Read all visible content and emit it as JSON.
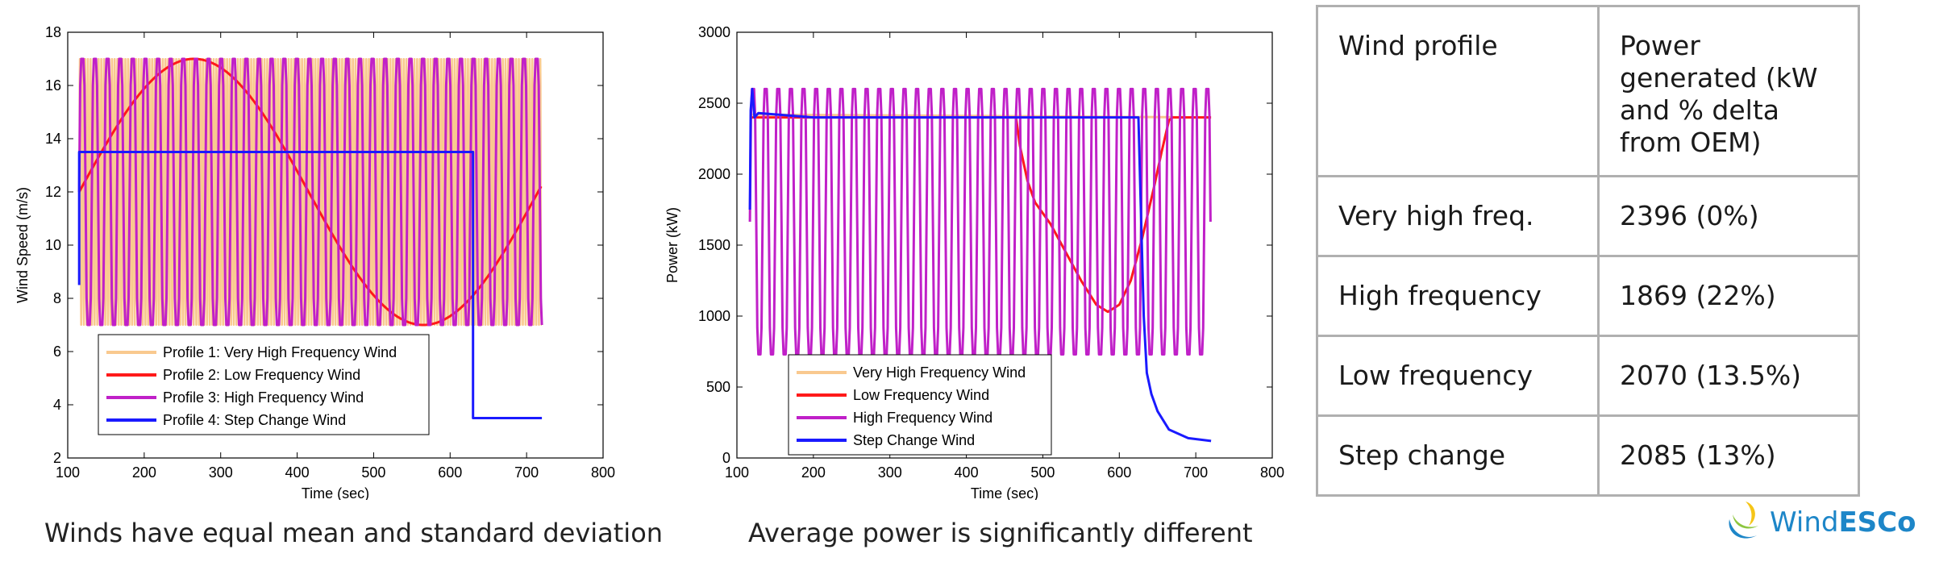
{
  "colors": {
    "profile1": "#f9c98f",
    "profile2": "#ff1a1a",
    "profile3": "#c020c8",
    "profile4": "#1a1aff",
    "logo_blue": "#1d86c8",
    "logo_green": "#8dc63f",
    "logo_yellow": "#f5c518"
  },
  "chart_data": [
    {
      "type": "line",
      "title": "",
      "xlabel": "Time (sec)",
      "ylabel": "Wind Speed (m/s)",
      "xlim": [
        100,
        800
      ],
      "ylim": [
        2,
        18
      ],
      "xticks": [
        "100",
        "200",
        "300",
        "400",
        "500",
        "600",
        "700",
        "800"
      ],
      "yticks": [
        "2",
        "4",
        "6",
        "8",
        "10",
        "12",
        "14",
        "16",
        "18"
      ],
      "grid": false,
      "legend_position": "bottom-left",
      "series": [
        {
          "name": "Profile 1: Very High Frequency Wind",
          "color": "#f9c98f",
          "shape": "oscillation",
          "x_range": [
            115,
            720
          ],
          "mean": 12,
          "amplitude": 5,
          "period": 3.5
        },
        {
          "name": "Profile 2: Low Frequency Wind",
          "color": "#ff1a1a",
          "shape": "sine",
          "x_range": [
            115,
            720
          ],
          "mean": 12,
          "amplitude": 5,
          "period": 600,
          "phase_start": 115
        },
        {
          "name": "Profile 3: High Frequency Wind",
          "color": "#c020c8",
          "shape": "oscillation",
          "x_range": [
            115,
            720
          ],
          "mean": 12,
          "amplitude": 5,
          "period": 16.5
        },
        {
          "name": "Profile 4: Step Change Wind",
          "color": "#1a1aff",
          "shape": "path",
          "points": [
            [
              115,
              8.5
            ],
            [
              115,
              13.5
            ],
            [
              630,
              13.5
            ],
            [
              630,
              3.5
            ],
            [
              720,
              3.5
            ]
          ]
        }
      ]
    },
    {
      "type": "line",
      "title": "",
      "xlabel": "Time (sec)",
      "ylabel": "Power (kW)",
      "xlim": [
        100,
        800
      ],
      "ylim": [
        0,
        3000
      ],
      "xticks": [
        "100",
        "200",
        "300",
        "400",
        "500",
        "600",
        "700",
        "800"
      ],
      "yticks": [
        "0",
        "500",
        "1000",
        "1500",
        "2000",
        "2500",
        "3000"
      ],
      "grid": false,
      "legend_position": "bottom-left",
      "series": [
        {
          "name": "Very High Frequency Wind",
          "color": "#f9c98f",
          "shape": "path",
          "points": [
            [
              117,
              2420
            ],
            [
              720,
              2400
            ]
          ]
        },
        {
          "name": "Low Frequency Wind",
          "color": "#ff1a1a",
          "shape": "path",
          "points": [
            [
              117,
              2400
            ],
            [
              465,
              2400
            ],
            [
              470,
              2200
            ],
            [
              480,
              1950
            ],
            [
              490,
              1800
            ],
            [
              510,
              1650
            ],
            [
              530,
              1450
            ],
            [
              550,
              1250
            ],
            [
              570,
              1080
            ],
            [
              585,
              1030
            ],
            [
              600,
              1080
            ],
            [
              615,
              1250
            ],
            [
              630,
              1550
            ],
            [
              645,
              1900
            ],
            [
              655,
              2150
            ],
            [
              665,
              2380
            ],
            [
              670,
              2400
            ],
            [
              720,
              2400
            ]
          ]
        },
        {
          "name": "High Frequency Wind",
          "color": "#c020c8",
          "shape": "oscillation",
          "x_range": [
            117,
            720
          ],
          "low": 730,
          "high": 2600,
          "period": 16.5
        },
        {
          "name": "Step Change Wind",
          "color": "#1a1aff",
          "shape": "path",
          "points": [
            [
              117,
              1750
            ],
            [
              118,
              2450
            ],
            [
              120,
              2600
            ],
            [
              123,
              2400
            ],
            [
              128,
              2430
            ],
            [
              200,
              2400
            ],
            [
              625,
              2400
            ],
            [
              628,
              1800
            ],
            [
              632,
              1000
            ],
            [
              636,
              600
            ],
            [
              642,
              450
            ],
            [
              650,
              330
            ],
            [
              665,
              200
            ],
            [
              690,
              140
            ],
            [
              720,
              120
            ]
          ]
        }
      ]
    }
  ],
  "captions": {
    "left": "Winds have equal mean and standard deviation",
    "middle": "Average power is significantly different"
  },
  "table": {
    "header": [
      "Wind profile",
      "Power generated (kW and % delta from OEM)"
    ],
    "rows": [
      [
        "Very high freq.",
        "2396 (0%)"
      ],
      [
        "High frequency",
        "1869 (22%)"
      ],
      [
        "Low frequency",
        "2070 (13.5%)"
      ],
      [
        "Step change",
        "2085 (13%)"
      ]
    ]
  },
  "logo": {
    "text_light": "Wind",
    "text_bold": "ESCo"
  }
}
